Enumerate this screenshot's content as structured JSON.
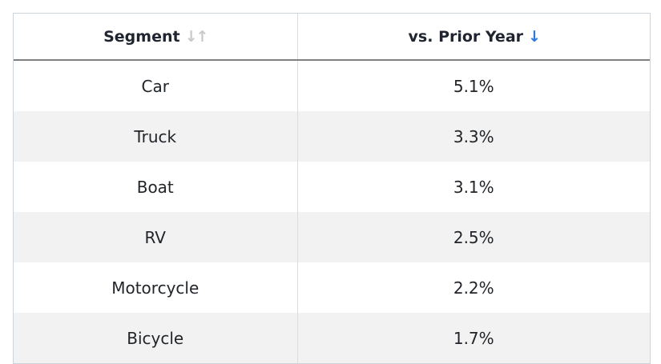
{
  "table": {
    "header": {
      "segment_label": "Segment",
      "segment_sort_icon": "↓↑",
      "segment_sort_state": "none",
      "value_label": "vs. Prior Year",
      "value_sort_icon": "↓",
      "value_sort_state": "descending"
    },
    "rows": [
      {
        "segment": "Car",
        "value": "5.1%"
      },
      {
        "segment": "Truck",
        "value": "3.3%"
      },
      {
        "segment": "Boat",
        "value": "3.1%"
      },
      {
        "segment": "RV",
        "value": "2.5%"
      },
      {
        "segment": "Motorcycle",
        "value": "2.2%"
      },
      {
        "segment": "Bicycle",
        "value": "1.7%"
      }
    ],
    "colors": {
      "accent_sort_active": "#2a7ade",
      "sort_inactive": "#c9c9c9",
      "row_stripe": "#f2f2f2",
      "header_rule": "#7f7f7f",
      "outer_border": "#ccd4da",
      "column_divider": "#dcdcdc",
      "text": "#212529"
    }
  },
  "chart_data": {
    "type": "table",
    "title": "",
    "columns": [
      "Segment",
      "vs. Prior Year"
    ],
    "rows": [
      [
        "Car",
        "5.1%"
      ],
      [
        "Truck",
        "3.3%"
      ],
      [
        "Boat",
        "3.1%"
      ],
      [
        "RV",
        "2.5%"
      ],
      [
        "Motorcycle",
        "2.2%"
      ],
      [
        "Bicycle",
        "1.7%"
      ]
    ],
    "values_numeric_pct": [
      5.1,
      3.3,
      3.1,
      2.5,
      2.2,
      1.7
    ],
    "sort": {
      "column": "vs. Prior Year",
      "direction": "descending"
    },
    "layout_hints": {
      "zebra_striping": true,
      "alignment": "center"
    }
  }
}
